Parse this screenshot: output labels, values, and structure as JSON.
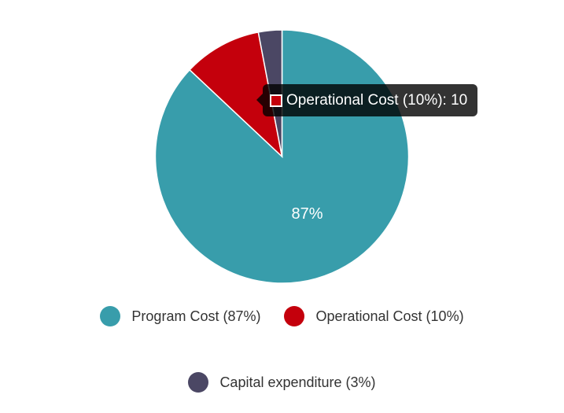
{
  "chart_data": {
    "type": "pie",
    "title": "",
    "slices": [
      {
        "label": "Program Cost (87%)",
        "value": 87,
        "color": "#389dab"
      },
      {
        "label": "Operational Cost (10%)",
        "value": 10,
        "color": "#c4000c"
      },
      {
        "label": "Capital expenditure (3%)",
        "value": 3,
        "color": "#4b4764"
      }
    ],
    "data_labels": [
      {
        "slice": "Program Cost (87%)",
        "text": "87%"
      }
    ],
    "legend_position": "bottom",
    "tooltip": {
      "slice": "Operational Cost (10%)",
      "text": "Operational Cost (10%): 10",
      "color": "#c4000c"
    }
  }
}
